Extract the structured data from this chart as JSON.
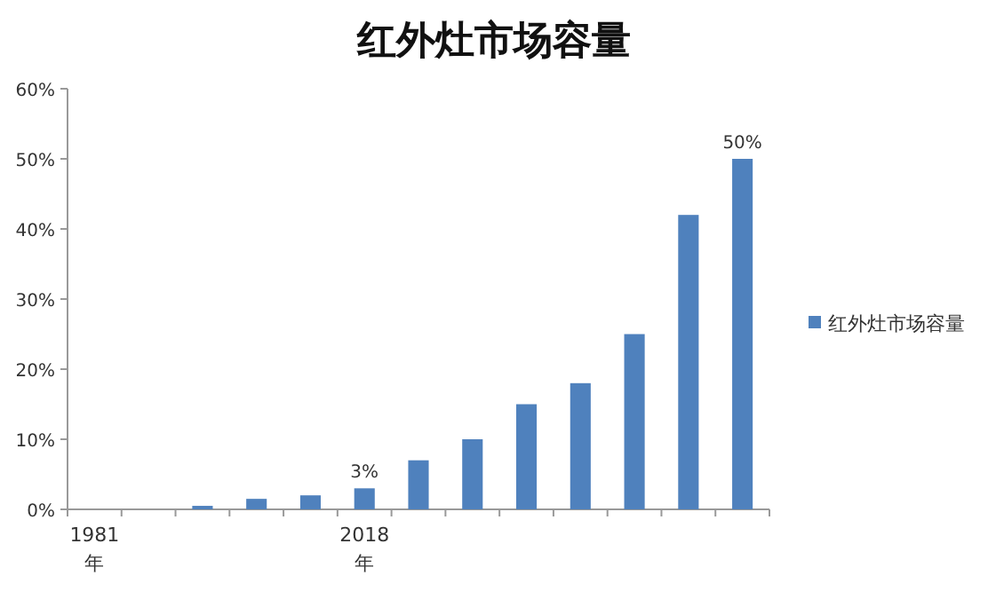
{
  "chart_data": {
    "type": "bar",
    "title": "红外灶市场容量",
    "categories": [
      "1981\n年",
      null,
      null,
      null,
      null,
      "2018\n年",
      null,
      null,
      null,
      null,
      null,
      null,
      null
    ],
    "series": [
      {
        "name": "红外灶市场容量",
        "color": "#4f81bd",
        "values": [
          0,
          0,
          0.5,
          1.5,
          2,
          3,
          7,
          10,
          15,
          18,
          25,
          42,
          50
        ],
        "value_labels": [
          null,
          null,
          null,
          null,
          null,
          "3%",
          null,
          null,
          null,
          null,
          null,
          null,
          "50%"
        ]
      }
    ],
    "ylim": [
      0,
      60
    ],
    "yticks": [
      {
        "value": 0,
        "label": "0%"
      },
      {
        "value": 10,
        "label": "10%"
      },
      {
        "value": 20,
        "label": "20%"
      },
      {
        "value": 30,
        "label": "30%"
      },
      {
        "value": 40,
        "label": "40%"
      },
      {
        "value": 50,
        "label": "50%"
      },
      {
        "value": 60,
        "label": "60%"
      }
    ],
    "grid": false,
    "legend": "right"
  }
}
